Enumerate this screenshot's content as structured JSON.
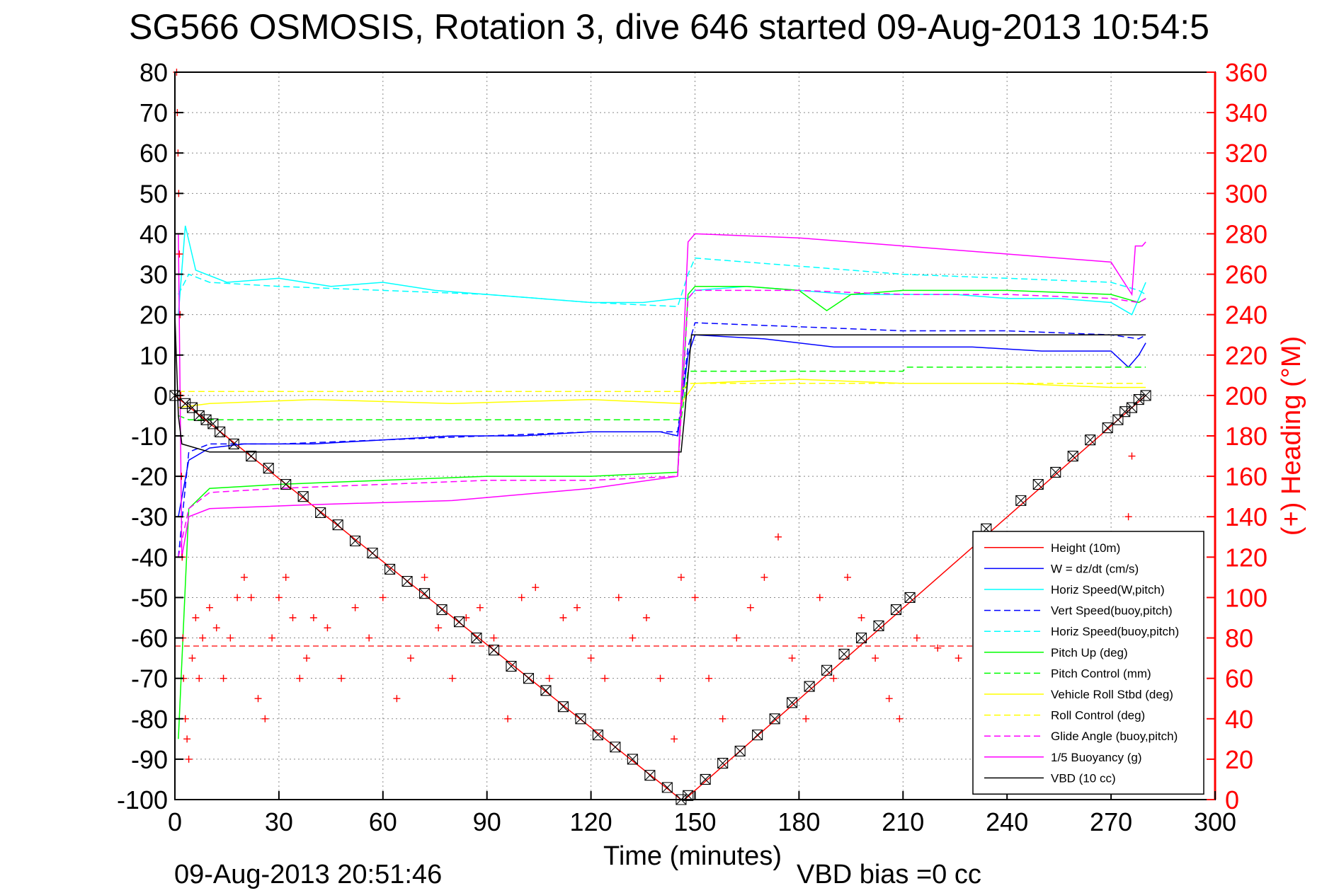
{
  "chart_data": {
    "type": "line",
    "title": "SG566 OSMOSIS, Rotation 3, dive 646 started 09-Aug-2013 10:54:5",
    "xlabel": "Time (minutes)",
    "ylabel": "",
    "ylabel_right": "(+) Heading (°M)",
    "footer_left": "09-Aug-2013 20:51:46",
    "footer_right": "VBD bias =0 cc",
    "xlim": [
      0,
      300
    ],
    "ylim": [
      -100,
      80
    ],
    "ylim_right": [
      0,
      360
    ],
    "x_ticks": [
      0,
      30,
      60,
      90,
      120,
      150,
      180,
      210,
      240,
      270,
      300
    ],
    "y_ticks": [
      80,
      70,
      60,
      50,
      40,
      30,
      20,
      10,
      0,
      -10,
      -20,
      -30,
      -40,
      -50,
      -60,
      -70,
      -80,
      -90,
      -100
    ],
    "y_ticks_right": [
      360,
      340,
      320,
      300,
      280,
      260,
      240,
      220,
      200,
      180,
      160,
      140,
      120,
      100,
      80,
      60,
      40,
      20,
      0
    ],
    "grid": true,
    "legend_position": "bottom-right",
    "series": [
      {
        "name": "Height (10m)",
        "color": "#ff0000",
        "style": "solid",
        "x": [
          0,
          146,
          147,
          280
        ],
        "y": [
          0,
          -100,
          -100,
          0
        ]
      },
      {
        "name": "W = dz/dt (cm/s)",
        "color": "#0000ff",
        "style": "solid",
        "x": [
          1,
          4,
          10,
          20,
          40,
          60,
          80,
          100,
          120,
          140,
          145,
          148,
          150,
          170,
          190,
          210,
          230,
          250,
          270,
          275,
          278,
          280
        ],
        "y": [
          -30,
          -16,
          -13,
          -12,
          -12,
          -11,
          -10,
          -10,
          -9,
          -9,
          -10,
          10,
          15,
          14,
          12,
          12,
          12,
          11,
          11,
          7,
          10,
          13
        ]
      },
      {
        "name": "Horiz Speed(W,pitch)",
        "color": "#00ffff",
        "style": "solid",
        "x": [
          1,
          3,
          6,
          15,
          30,
          45,
          60,
          75,
          90,
          105,
          120,
          135,
          145,
          148,
          150,
          165,
          180,
          195,
          210,
          225,
          240,
          255,
          270,
          276,
          278,
          280
        ],
        "y": [
          20,
          42,
          31,
          28,
          29,
          27,
          28,
          26,
          25,
          24,
          23,
          23,
          24,
          24,
          26,
          27,
          26,
          25,
          25,
          25,
          24,
          24,
          23,
          20,
          24,
          28
        ]
      },
      {
        "name": "Vert Speed(buoy,pitch)",
        "color": "#0000ff",
        "style": "dashed",
        "x": [
          1,
          4,
          10,
          30,
          60,
          90,
          120,
          145,
          148,
          150,
          180,
          210,
          240,
          270,
          278,
          280
        ],
        "y": [
          -40,
          -14,
          -12,
          -12,
          -11,
          -10,
          -9,
          -9,
          12,
          18,
          17,
          16,
          16,
          15,
          14,
          15
        ]
      },
      {
        "name": "Horiz Speed(buoy,pitch)",
        "color": "#00ffff",
        "style": "dashed",
        "x": [
          1,
          4,
          10,
          30,
          60,
          90,
          120,
          145,
          148,
          150,
          180,
          210,
          240,
          270,
          278,
          280
        ],
        "y": [
          25,
          30,
          28,
          27,
          26,
          25,
          23,
          22,
          30,
          34,
          32,
          30,
          29,
          28,
          26,
          25
        ]
      },
      {
        "name": "Pitch Up (deg)",
        "color": "#00ff00",
        "style": "solid",
        "x": [
          1,
          4,
          10,
          30,
          60,
          90,
          120,
          145,
          148,
          150,
          165,
          180,
          188,
          195,
          210,
          240,
          270,
          278,
          280
        ],
        "y": [
          -85,
          -28,
          -23,
          -22,
          -21,
          -20,
          -20,
          -19,
          25,
          27,
          27,
          26,
          21,
          25,
          26,
          26,
          25,
          23,
          24
        ]
      },
      {
        "name": "Pitch Control (mm)",
        "color": "#00ff00",
        "style": "dashed",
        "x": [
          1,
          4,
          146,
          148,
          210,
          211,
          280
        ],
        "y": [
          -5,
          -6,
          -6,
          6,
          6,
          7,
          7
        ]
      },
      {
        "name": "Vehicle Roll Stbd (deg)",
        "color": "#ffff00",
        "style": "solid",
        "x": [
          1,
          10,
          40,
          80,
          120,
          146,
          150,
          180,
          210,
          240,
          270,
          280
        ],
        "y": [
          -3,
          -2,
          -1,
          -2,
          -1,
          -2,
          3,
          4,
          3,
          3,
          2,
          2
        ]
      },
      {
        "name": "Roll Control (deg)",
        "color": "#ffff00",
        "style": "dashed",
        "x": [
          1,
          146,
          148,
          280
        ],
        "y": [
          1,
          1,
          3,
          3
        ]
      },
      {
        "name": "Glide Angle (buoy,pitch)",
        "color": "#ff00ff",
        "style": "dashed",
        "x": [
          1,
          4,
          10,
          30,
          60,
          90,
          120,
          145,
          148,
          150,
          180,
          210,
          240,
          270,
          278,
          280
        ],
        "y": [
          -40,
          -28,
          -24,
          -23,
          -22,
          -21,
          -21,
          -20,
          24,
          26,
          26,
          25,
          25,
          24,
          23,
          24
        ]
      },
      {
        "name": "1/5 Buoyancy (g)",
        "color": "#ff00ff",
        "style": "solid",
        "x": [
          1,
          2,
          4,
          10,
          40,
          80,
          120,
          145,
          148,
          150,
          180,
          210,
          240,
          270,
          276,
          277,
          279,
          280
        ],
        "y": [
          40,
          -40,
          -30,
          -28,
          -27,
          -26,
          -23,
          -20,
          38,
          40,
          39,
          37,
          35,
          33,
          25,
          37,
          37,
          38
        ]
      },
      {
        "name": "VBD (10 cc)",
        "color": "#000000",
        "style": "solid",
        "x": [
          0,
          1,
          2,
          10,
          146,
          147,
          149,
          280
        ],
        "y": [
          20,
          -5,
          -12,
          -14,
          -14,
          -5,
          15,
          15
        ]
      }
    ],
    "depth_markers": {
      "x": [
        0,
        3,
        5,
        7,
        9,
        11,
        13,
        17,
        22,
        27,
        32,
        37,
        42,
        47,
        52,
        57,
        62,
        67,
        72,
        77,
        82,
        87,
        92,
        97,
        102,
        107,
        112,
        117,
        122,
        127,
        132,
        137,
        142,
        146,
        148,
        153,
        158,
        163,
        168,
        173,
        178,
        183,
        188,
        193,
        198,
        203,
        208,
        212,
        234,
        244,
        249,
        254,
        259,
        264,
        269,
        272,
        274,
        276,
        278,
        280
      ],
      "y": [
        0,
        -2,
        -3,
        -5,
        -6,
        -7,
        -9,
        -12,
        -15,
        -18,
        -22,
        -25,
        -29,
        -32,
        -36,
        -39,
        -43,
        -46,
        -49,
        -53,
        -56,
        -60,
        -63,
        -67,
        -70,
        -73,
        -77,
        -80,
        -84,
        -87,
        -90,
        -94,
        -97,
        -100,
        -99,
        -95,
        -91,
        -88,
        -84,
        -80,
        -76,
        -72,
        -68,
        -64,
        -60,
        -57,
        -53,
        -50,
        -33,
        -26,
        -22,
        -19,
        -15,
        -11,
        -8,
        -6,
        -4,
        -3,
        -1,
        0
      ]
    },
    "heading": {
      "name": "(+) Heading (°M)",
      "color": "#ff0000",
      "marker": "plus",
      "mean_line": 76,
      "x": [
        0.5,
        0.7,
        0.9,
        1.1,
        1.3,
        1.5,
        1.7,
        1.9,
        2.1,
        2.3,
        2.5,
        3,
        3.5,
        4,
        5,
        6,
        7,
        8,
        10,
        12,
        14,
        16,
        18,
        20,
        22,
        24,
        26,
        28,
        30,
        32,
        34,
        36,
        38,
        40,
        44,
        48,
        52,
        56,
        60,
        64,
        68,
        72,
        76,
        80,
        84,
        88,
        92,
        96,
        100,
        104,
        108,
        112,
        116,
        120,
        124,
        128,
        132,
        136,
        140,
        144,
        146,
        150,
        154,
        158,
        162,
        166,
        170,
        174,
        178,
        182,
        186,
        190,
        194,
        198,
        202,
        206,
        209,
        214,
        220,
        226,
        232,
        238,
        244,
        250,
        256,
        262,
        268,
        272,
        274,
        275,
        276,
        277,
        278,
        279
      ],
      "y": [
        360,
        340,
        320,
        300,
        270,
        240,
        200,
        160,
        120,
        80,
        60,
        40,
        30,
        20,
        70,
        90,
        60,
        80,
        95,
        85,
        60,
        80,
        100,
        110,
        100,
        50,
        40,
        80,
        100,
        110,
        90,
        60,
        70,
        90,
        85,
        60,
        95,
        80,
        100,
        50,
        70,
        110,
        85,
        60,
        90,
        95,
        80,
        40,
        100,
        105,
        60,
        90,
        95,
        70,
        60,
        100,
        80,
        90,
        60,
        30,
        110,
        100,
        60,
        40,
        80,
        95,
        110,
        130,
        70,
        40,
        100,
        60,
        110,
        90,
        70,
        50,
        40,
        80,
        75,
        70,
        73,
        72,
        75,
        70,
        74,
        72,
        75,
        80,
        110,
        140,
        170,
        120,
        90,
        76
      ]
    }
  }
}
